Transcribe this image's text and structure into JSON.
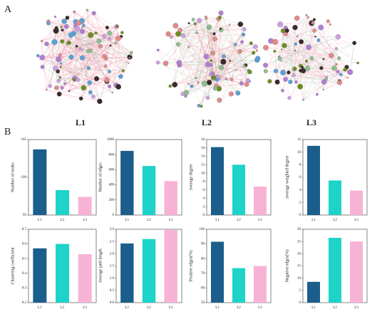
{
  "panel_labels": [
    "A",
    "B"
  ],
  "network_labels": [
    "L1",
    "L2",
    "L3"
  ],
  "chart_data": [
    {
      "type": "bar",
      "y_label": "Number of nodes",
      "categories": [
        "L1",
        "L2",
        "L3"
      ],
      "values": [
        103.7,
        98.3,
        97.4
      ],
      "colors": [
        "#1b5e8c",
        "#1ed3c8",
        "#f7b3d6"
      ],
      "ylim": [
        95,
        105
      ],
      "yticks": [
        95,
        100,
        105
      ]
    },
    {
      "type": "bar",
      "y_label": "Number of edges",
      "categories": [
        "L1",
        "L2",
        "L3"
      ],
      "values": [
        850,
        650,
        450
      ],
      "colors": [
        "#1b5e8c",
        "#1ed3c8",
        "#f7b3d6"
      ],
      "ylim": [
        0,
        1000
      ],
      "yticks": [
        0,
        200,
        400,
        600,
        800,
        1000
      ]
    },
    {
      "type": "bar",
      "y_label": "Average degree",
      "categories": [
        "L1",
        "L2",
        "L3"
      ],
      "values": [
        16.2,
        12.0,
        6.8
      ],
      "colors": [
        "#1b5e8c",
        "#1ed3c8",
        "#f7b3d6"
      ],
      "ylim": [
        0,
        18
      ],
      "yticks": [
        0,
        2,
        4,
        6,
        8,
        10,
        12,
        14,
        16,
        18
      ]
    },
    {
      "type": "bar",
      "y_label": "Average weighted degree",
      "categories": [
        "L1",
        "L2",
        "L3"
      ],
      "values": [
        11.0,
        5.5,
        3.9
      ],
      "colors": [
        "#1b5e8c",
        "#1ed3c8",
        "#f7b3d6"
      ],
      "ylim": [
        0,
        12
      ],
      "yticks": [
        0,
        2,
        4,
        6,
        8,
        10,
        12
      ]
    },
    {
      "type": "bar",
      "y_label": "Clustering coefficient",
      "categories": [
        "L1",
        "L2",
        "L3"
      ],
      "values": [
        0.57,
        0.6,
        0.53
      ],
      "colors": [
        "#1b5e8c",
        "#1ed3c8",
        "#f7b3d6"
      ],
      "ylim": [
        0.2,
        0.7
      ],
      "yticks": [
        0.2,
        0.3,
        0.4,
        0.5,
        0.6,
        0.7
      ]
    },
    {
      "type": "bar",
      "y_label": "Average path length",
      "categories": [
        "L1",
        "L2",
        "L3"
      ],
      "values": [
        2.42,
        2.6,
        2.97
      ],
      "colors": [
        "#1b5e8c",
        "#1ed3c8",
        "#f7b3d6"
      ],
      "ylim": [
        0,
        3
      ],
      "yticks": [
        {
          "value": 0,
          "label": "0.0"
        },
        0.5,
        {
          "value": 1,
          "label": "1.0"
        },
        1.5,
        {
          "value": 2,
          "label": "2.0"
        },
        2.5,
        {
          "value": 3,
          "label": "3.0"
        }
      ]
    },
    {
      "type": "bar",
      "y_label": "Positive edges(%)",
      "categories": [
        "L1",
        "L2",
        "L3"
      ],
      "values": [
        91.5,
        73.5,
        75.0
      ],
      "colors": [
        "#1b5e8c",
        "#1ed3c8",
        "#f7b3d6"
      ],
      "ylim": [
        50,
        100
      ],
      "yticks": [
        50,
        60,
        70,
        80,
        90,
        100
      ]
    },
    {
      "type": "bar",
      "y_label": "Negative edges(%)",
      "categories": [
        "L1",
        "L2",
        "L3"
      ],
      "values": [
        8.5,
        26.5,
        25.0
      ],
      "colors": [
        "#1b5e8c",
        "#1ed3c8",
        "#f7b3d6"
      ],
      "ylim": [
        0,
        30
      ],
      "yticks": [
        0,
        5,
        10,
        15,
        20,
        25,
        30
      ]
    }
  ]
}
